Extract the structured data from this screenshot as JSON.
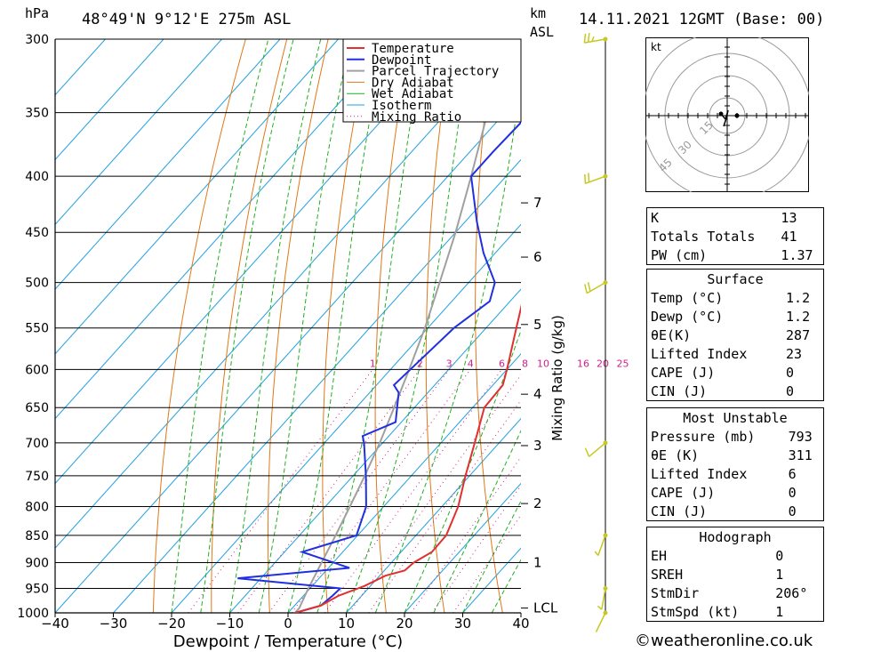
{
  "header": {
    "pressure_unit": "hPa",
    "location": "48°49'N 9°12'E 275m ASL",
    "height_unit_top": "km",
    "height_unit_bottom": "ASL",
    "datetime": "14.11.2021 12GMT (Base: 00)"
  },
  "chart_data": {
    "type": "skew-t",
    "xlabel": "Dewpoint / Temperature (°C)",
    "right_axis_label": "Mixing Ratio (g/kg)",
    "ylabel": "hPa",
    "xlim": [
      -40,
      40
    ],
    "pressure_levels": [
      300,
      350,
      400,
      450,
      500,
      550,
      600,
      650,
      700,
      750,
      800,
      850,
      900,
      950,
      1000
    ],
    "x_ticks": [
      -40,
      -30,
      -20,
      -10,
      0,
      10,
      20,
      30,
      40
    ],
    "height_ticks_km": [
      {
        "label": "7",
        "p": 423
      },
      {
        "label": "6",
        "p": 474
      },
      {
        "label": "5",
        "p": 546
      },
      {
        "label": "4",
        "p": 632
      },
      {
        "label": "3",
        "p": 704
      },
      {
        "label": "2",
        "p": 795
      },
      {
        "label": "1",
        "p": 900
      },
      {
        "label": "LCL",
        "p": 990
      }
    ],
    "mixing_ratio_labels": [
      "1",
      "2",
      "3",
      "4",
      "6",
      "8",
      "10",
      "16",
      "20",
      "25"
    ],
    "legend": [
      "Temperature",
      "Dewpoint",
      "Parcel Trajectory",
      "Dry Adiabat",
      "Wet Adiabat",
      "Isotherm",
      "Mixing Ratio"
    ],
    "colors": {
      "temperature": "#e03030",
      "dewpoint": "#2030e0",
      "parcel": "#a0a0a0",
      "dry_adiabat": "#e07818",
      "wet_adiabat": "#20b020",
      "isotherm": "#20a0e0",
      "mixing_ratio": "#d0208a",
      "wind": "#c8c820"
    },
    "series": [
      {
        "name": "Temperature",
        "points": [
          [
            1000,
            1.2
          ],
          [
            985,
            4.5
          ],
          [
            965,
            6.0
          ],
          [
            945,
            9.0
          ],
          [
            925,
            11.0
          ],
          [
            915,
            13.5
          ],
          [
            900,
            13.8
          ],
          [
            880,
            15.3
          ],
          [
            850,
            15.2
          ],
          [
            800,
            12.8
          ],
          [
            750,
            9.3
          ],
          [
            700,
            5.8
          ],
          [
            650,
            2.0
          ],
          [
            620,
            1.7
          ],
          [
            600,
            0.0
          ],
          [
            550,
            -4.8
          ],
          [
            500,
            -10.0
          ],
          [
            475,
            -11.5
          ],
          [
            450,
            -14.0
          ],
          [
            400,
            -20.5
          ],
          [
            350,
            -27.5
          ],
          [
            300,
            -36.0
          ]
        ]
      },
      {
        "name": "Dewpoint",
        "points": [
          [
            1000,
            1.2
          ],
          [
            985,
            4.5
          ],
          [
            965,
            5.0
          ],
          [
            950,
            5.2
          ],
          [
            930,
            -14.0
          ],
          [
            910,
            3.6
          ],
          [
            880,
            -7.0
          ],
          [
            850,
            -0.2
          ],
          [
            800,
            -3.0
          ],
          [
            750,
            -7.8
          ],
          [
            700,
            -13.2
          ],
          [
            690,
            -14.5
          ],
          [
            670,
            -11.0
          ],
          [
            630,
            -15.0
          ],
          [
            620,
            -17.0
          ],
          [
            550,
            -15.5
          ],
          [
            520,
            -13.5
          ],
          [
            500,
            -15.5
          ],
          [
            470,
            -22.0
          ],
          [
            440,
            -28.0
          ],
          [
            400,
            -36.0
          ],
          [
            380,
            -36.0
          ],
          [
            300,
            -35.0
          ]
        ]
      },
      {
        "name": "Parcel Trajectory",
        "points": [
          [
            1000,
            1.2
          ],
          [
            990,
            1.2
          ],
          [
            950,
            -0.3
          ],
          [
            900,
            -2.0
          ],
          [
            850,
            -3.8
          ],
          [
            800,
            -5.8
          ],
          [
            750,
            -8.0
          ],
          [
            700,
            -10.5
          ],
          [
            650,
            -13.5
          ],
          [
            600,
            -16.8
          ],
          [
            550,
            -20.5
          ],
          [
            500,
            -25.0
          ],
          [
            450,
            -30.0
          ],
          [
            400,
            -36.0
          ],
          [
            350,
            -43.0
          ],
          [
            300,
            -52.0
          ]
        ]
      }
    ],
    "wind_barbs": [
      {
        "p": 1000,
        "dir": 206,
        "spd": 1
      },
      {
        "p": 950,
        "dir": 190,
        "spd": 3
      },
      {
        "p": 850,
        "dir": 200,
        "spd": 5
      },
      {
        "p": 700,
        "dir": 230,
        "spd": 10
      },
      {
        "p": 500,
        "dir": 240,
        "spd": 20
      },
      {
        "p": 400,
        "dir": 250,
        "spd": 20
      },
      {
        "p": 300,
        "dir": 260,
        "spd": 25
      }
    ]
  },
  "hodograph": {
    "unit": "kt",
    "ring_labels": [
      "15",
      "30",
      "45"
    ]
  },
  "indices": {
    "general": [
      {
        "label": "K",
        "value": "13"
      },
      {
        "label": "Totals Totals",
        "value": "41"
      },
      {
        "label": "PW (cm)",
        "value": "1.37"
      }
    ],
    "surface": {
      "title": "Surface",
      "rows": [
        {
          "label": "Temp (°C)",
          "value": "1.2"
        },
        {
          "label": "Dewp (°C)",
          "value": "1.2"
        },
        {
          "label": "θE(K)",
          "value": "287"
        },
        {
          "label": "Lifted Index",
          "value": "23"
        },
        {
          "label": "CAPE (J)",
          "value": "0"
        },
        {
          "label": "CIN (J)",
          "value": "0"
        }
      ]
    },
    "most_unstable": {
      "title": "Most Unstable",
      "rows": [
        {
          "label": "Pressure (mb)",
          "value": "793"
        },
        {
          "label": "θE (K)",
          "value": "311"
        },
        {
          "label": "Lifted Index",
          "value": "6"
        },
        {
          "label": "CAPE (J)",
          "value": "0"
        },
        {
          "label": "CIN (J)",
          "value": "0"
        }
      ]
    },
    "hodograph": {
      "title": "Hodograph",
      "rows": [
        {
          "label": "EH",
          "value": "0"
        },
        {
          "label": "SREH",
          "value": "1"
        },
        {
          "label": "StmDir",
          "value": "206°"
        },
        {
          "label": "StmSpd (kt)",
          "value": "1"
        }
      ]
    }
  },
  "footer": {
    "copyright": "©weatheronline.co.uk"
  }
}
